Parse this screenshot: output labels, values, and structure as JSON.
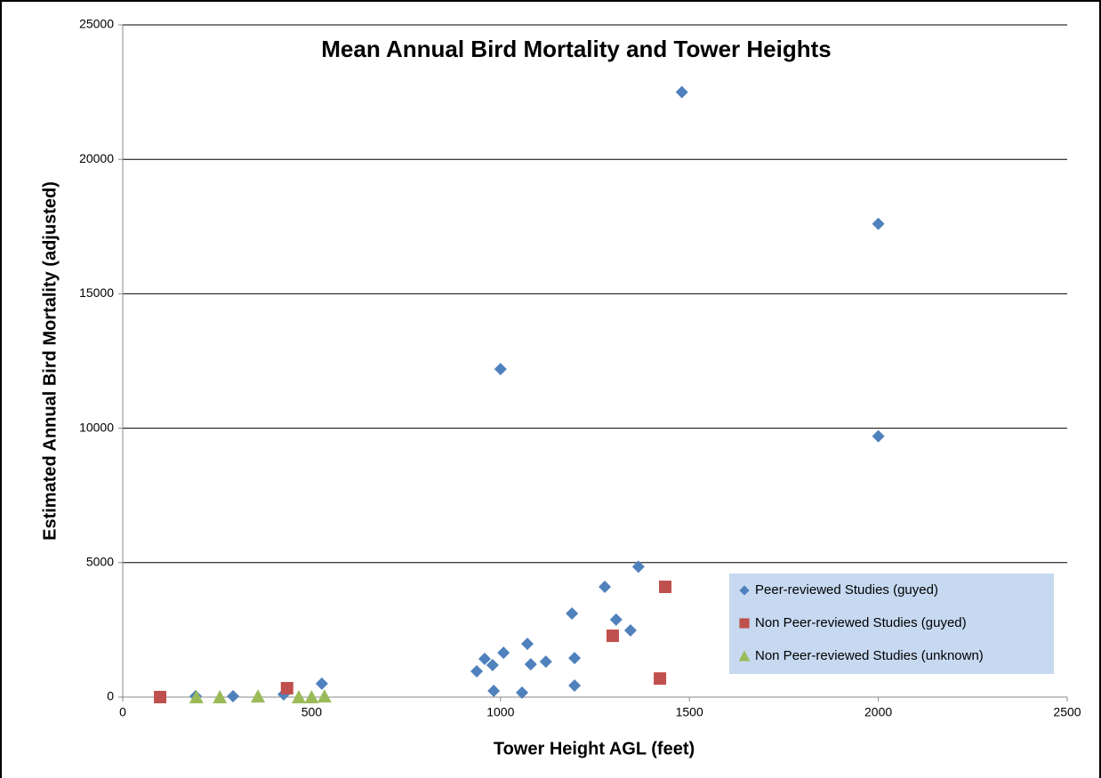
{
  "chart_data": {
    "type": "scatter",
    "title": "Mean Annual Bird Mortality and Tower Heights",
    "x_label": "Tower Height AGL (feet)",
    "y_label": "Estimated Annual Bird Mortality (adjusted)",
    "xlim": [
      0,
      2500
    ],
    "xticks": [
      0,
      500,
      1000,
      1500,
      2000,
      2500
    ],
    "ylim": [
      0,
      25000
    ],
    "yticks": [
      0,
      5000,
      10000,
      15000,
      20000,
      25000
    ],
    "grid": true,
    "legend": "lower right",
    "series": [
      {
        "name": "Peer-reviewed Studies (guyed)",
        "color": "#4f81bd",
        "marker": "diamond",
        "x": [
          1480,
          2000,
          1000,
          2000,
          1365,
          1276,
          1189,
          1306,
          1344,
          1071,
          1008,
          1120,
          1080,
          1196,
          958,
          979,
          937,
          982,
          1057,
          1196,
          527,
          426,
          292,
          193
        ],
        "values": [
          22500,
          17600,
          12200,
          9700,
          4850,
          4100,
          3110,
          2880,
          2480,
          1980,
          1650,
          1320,
          1220,
          1450,
          1420,
          1190,
          960,
          230,
          165,
          430,
          500,
          100,
          33,
          33
        ]
      },
      {
        "name": "Non Peer-reviewed Studies (guyed)",
        "color": "#c0504d",
        "marker": "square",
        "x": [
          99,
          435,
          1297,
          1436,
          1422
        ],
        "values": [
          0,
          330,
          2280,
          4100,
          690
        ]
      },
      {
        "name": "Non Peer-reviewed Studies (unknown)",
        "color": "#9bbb59",
        "marker": "triangle",
        "x": [
          195,
          257,
          358,
          466,
          500,
          534
        ],
        "values": [
          0,
          0,
          30,
          0,
          0,
          30
        ]
      }
    ]
  }
}
